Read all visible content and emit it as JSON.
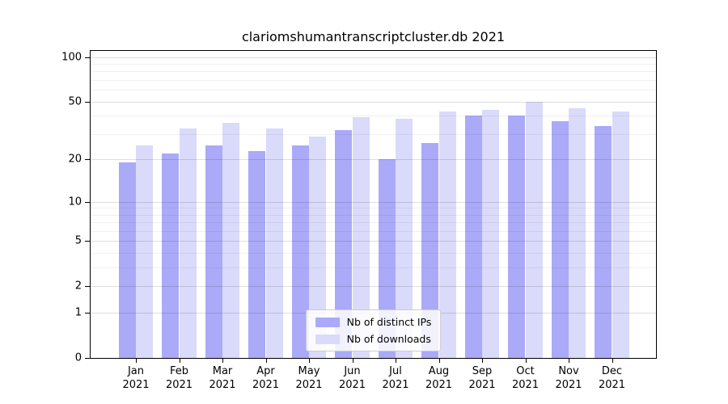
{
  "chart_data": {
    "type": "bar",
    "title": "clariomshumantranscriptcluster.db 2021",
    "x_tick_months": [
      "Jan",
      "Feb",
      "Mar",
      "Apr",
      "May",
      "Jun",
      "Jul",
      "Aug",
      "Sep",
      "Oct",
      "Nov",
      "Dec"
    ],
    "x_tick_year": "2021",
    "series": [
      {
        "name": "Nb of distinct IPs",
        "color": "#aaaaf8",
        "values": [
          19,
          22,
          25,
          23,
          25,
          32,
          20,
          26,
          40,
          40,
          37,
          34
        ]
      },
      {
        "name": "Nb of downloads",
        "color": "#dadafa",
        "values": [
          25,
          33,
          36,
          33,
          29,
          39,
          38,
          43,
          44,
          50,
          45,
          43
        ]
      }
    ],
    "xlabel": "",
    "ylabel": "",
    "yscale": "log10(1+x)",
    "yticks": [
      0,
      1,
      2,
      5,
      10,
      20,
      50,
      100
    ],
    "minor_gridlines": [
      3,
      4,
      6,
      7,
      8,
      9,
      30,
      40,
      60,
      70,
      80,
      90
    ],
    "ylim": [
      0,
      110
    ],
    "grid": true,
    "legend_position": "lower center"
  },
  "colors": {
    "bar_distinct_ips": "#aaaaf8",
    "bar_downloads": "#dadafa",
    "axis": "#000000",
    "legend_border": "#cccccc",
    "background": "#ffffff"
  }
}
